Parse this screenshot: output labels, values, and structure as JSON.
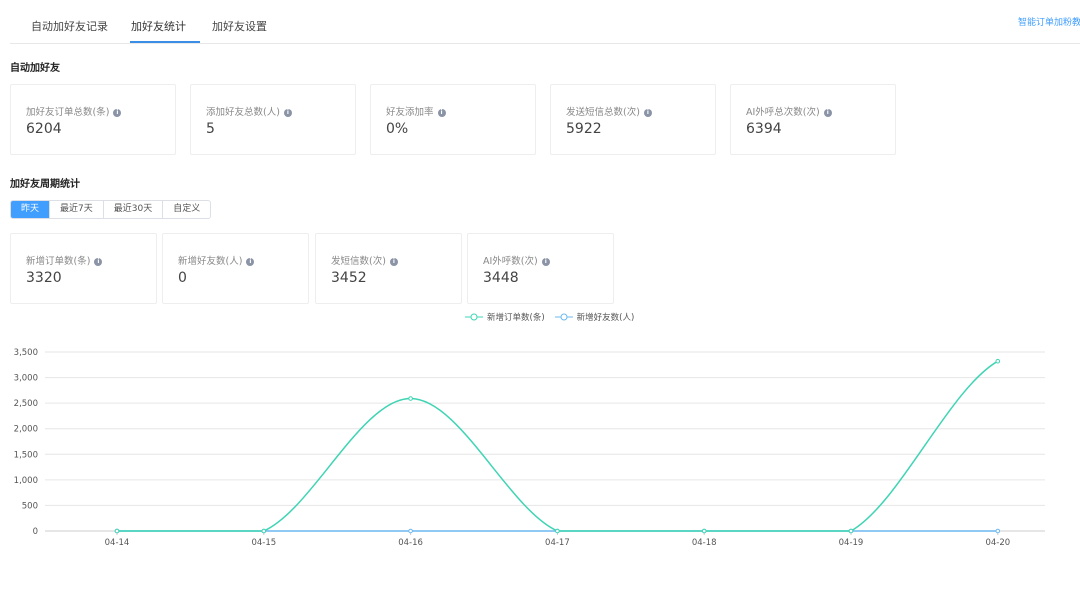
{
  "tabs": [
    {
      "label": "自动加好友记录"
    },
    {
      "label": "加好友统计",
      "active": true
    },
    {
      "label": "加好友设置"
    }
  ],
  "top_link": "智能订单加粉教程",
  "section1": {
    "title": "自动加好友",
    "cards": [
      {
        "label": "加好友订单总数(条)",
        "value": "6204"
      },
      {
        "label": "添加好友总数(人)",
        "value": "5"
      },
      {
        "label": "好友添加率",
        "value": "0%"
      },
      {
        "label": "发送短信总数(次)",
        "value": "5922"
      },
      {
        "label": "AI外呼总次数(次)",
        "value": "6394"
      }
    ]
  },
  "section2": {
    "title": "加好友周期统计",
    "ranges": [
      {
        "label": "昨天",
        "active": true
      },
      {
        "label": "最近7天"
      },
      {
        "label": "最近30天"
      },
      {
        "label": "自定义"
      }
    ],
    "cards": [
      {
        "label": "新增订单数(条)",
        "value": "3320"
      },
      {
        "label": "新增好友数(人)",
        "value": "0"
      },
      {
        "label": "发短信数(次)",
        "value": "3452"
      },
      {
        "label": "AI外呼数(次)",
        "value": "3448"
      }
    ]
  },
  "chart_data": {
    "type": "line",
    "smooth": true,
    "grid": true,
    "legend": "top-center",
    "categories": [
      "04-14",
      "04-15",
      "04-16",
      "04-17",
      "04-18",
      "04-19",
      "04-20"
    ],
    "ylim": [
      0,
      3500
    ],
    "yticks": [
      "0",
      "500",
      "1,000",
      "1,500",
      "2,000",
      "2,500",
      "3,000",
      "3,500"
    ],
    "series": [
      {
        "name": "新增订单数(条)",
        "color": "#3fd4b4",
        "values": [
          0,
          0,
          2590,
          0,
          0,
          0,
          3320
        ]
      },
      {
        "name": "新增好友数(人)",
        "color": "#6cb8f0",
        "values": [
          0,
          0,
          0,
          0,
          0,
          0,
          0
        ]
      }
    ]
  }
}
